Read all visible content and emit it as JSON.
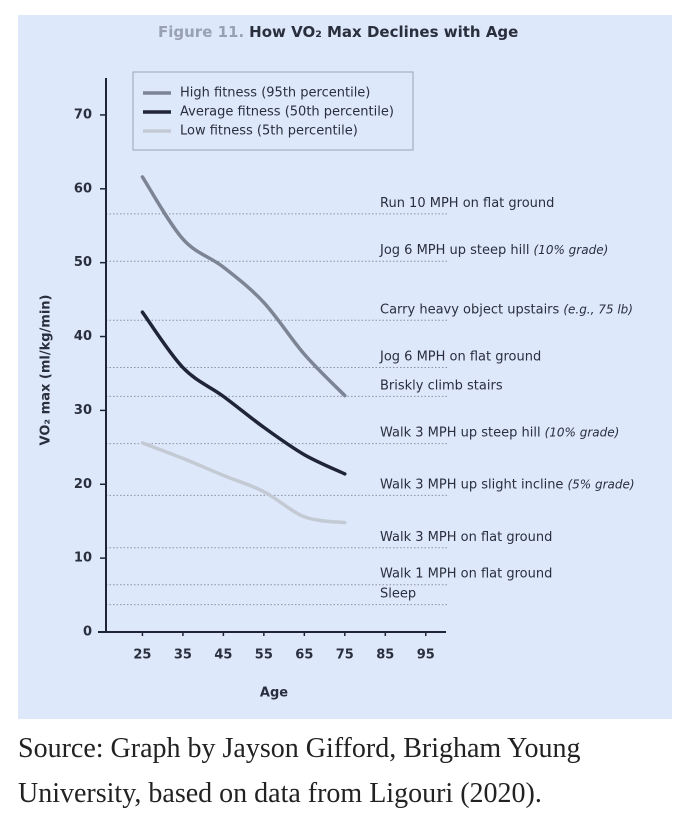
{
  "chart_data": {
    "type": "line",
    "figure_label": "Figure 11.",
    "title": "How VO₂ Max Declines with Age",
    "x": [
      25,
      35,
      45,
      55,
      65,
      75
    ],
    "series": [
      {
        "name": "High fitness (95th percentile)",
        "color": "#7d8594",
        "values": [
          61.6,
          53.2,
          49.4,
          44.6,
          37.6,
          32.0
        ]
      },
      {
        "name": "Average fitness (50th percentile)",
        "color": "#1f2536",
        "values": [
          43.3,
          35.8,
          31.9,
          27.7,
          24.0,
          21.4
        ]
      },
      {
        "name": "Low fitness (5th percentile)",
        "color": "#c4cad4",
        "values": [
          25.6,
          23.5,
          21.2,
          19.0,
          15.6,
          14.8
        ]
      }
    ],
    "xlim": [
      16,
      100
    ],
    "xticks": [
      25,
      35,
      45,
      55,
      65,
      75,
      85,
      95
    ],
    "ylim": [
      0,
      75
    ],
    "yticks": [
      0,
      10,
      20,
      30,
      40,
      50,
      60,
      70
    ],
    "xlabel": "Age",
    "ylabel": "VO₂ max (ml/kg/min)",
    "legend": "upper left",
    "reference_lines": [
      {
        "value": 56.6,
        "label": "Run 10 MPH on flat ground"
      },
      {
        "value": 50.2,
        "label": "Jog 6 MPH up steep hill",
        "note": "(10% grade)"
      },
      {
        "value": 42.2,
        "label": "Carry heavy object upstairs",
        "note": "(e.g., 75 lb)"
      },
      {
        "value": 35.8,
        "label": "Jog 6 MPH on flat ground"
      },
      {
        "value": 31.9,
        "label": "Briskly climb stairs"
      },
      {
        "value": 25.5,
        "label": "Walk 3 MPH up steep hill",
        "note": "(10% grade)"
      },
      {
        "value": 18.5,
        "label": "Walk 3 MPH up slight incline",
        "note": "(5% grade)"
      },
      {
        "value": 11.4,
        "label": "Walk 3 MPH on flat ground"
      },
      {
        "value": 6.4,
        "label": "Walk 1 MPH on flat ground"
      },
      {
        "value": 3.7,
        "label": "Sleep"
      }
    ]
  },
  "source": "Source: Graph by Jayson Gifford, Brigham Young University, based on data from Ligouri (2020)."
}
